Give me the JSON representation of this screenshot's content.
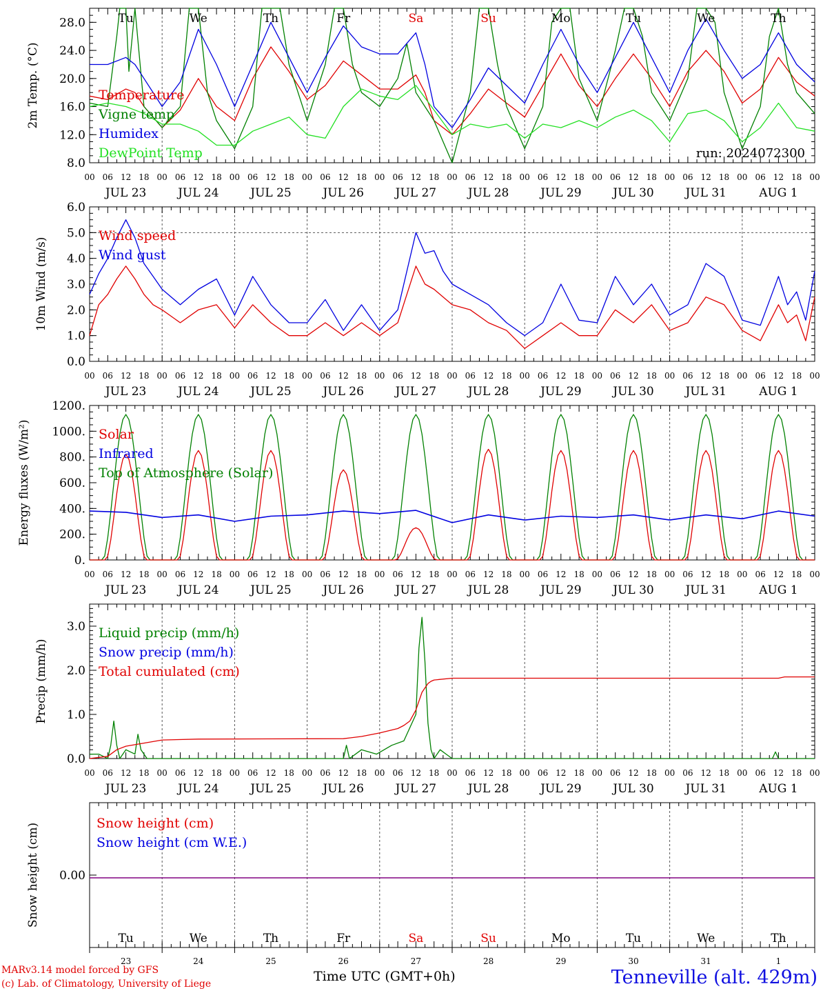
{
  "footer": {
    "credit_model": "MARv3.14 model forced by GFS",
    "credit_lab": "(c) Lab. of Climatology, University of Liege",
    "time_label": "Time UTC (GMT+0h)",
    "station": "Tenneville (alt. 429m)",
    "run": "run: 2024072300"
  },
  "chart_data": {
    "type": "line",
    "x_unit": "hours since 2024-07-23 00 UTC",
    "x_range": [
      0,
      240
    ],
    "hour_ticks": [
      "00",
      "06",
      "12",
      "18"
    ],
    "date_labels": [
      "JUL 23",
      "JUL 24",
      "JUL 25",
      "JUL 26",
      "JUL 27",
      "JUL 28",
      "JUL 29",
      "JUL 30",
      "JUL 31",
      "AUG  1"
    ],
    "day_names": [
      "Tu",
      "We",
      "Th",
      "Fr",
      "Sa",
      "Su",
      "Mo",
      "Tu",
      "We",
      "Th"
    ],
    "day_numbers": [
      "23",
      "24",
      "25",
      "26",
      "27",
      "28",
      "29",
      "30",
      "31",
      "1"
    ],
    "weekend_indices": [
      4,
      5
    ],
    "colors": {
      "red": "#e00000",
      "green": "#008000",
      "blue": "#0000e0",
      "lightgreen": "#22e022",
      "purple": "#800080",
      "grid": "#555555"
    },
    "panels": [
      {
        "id": "temp",
        "ylabel": "2m Temp. (°C)",
        "ylim": [
          8,
          30
        ],
        "yticks": [
          "8.0",
          "12.0",
          "16.0",
          "20.0",
          "24.0",
          "28.0"
        ],
        "series": [
          {
            "name": "Temperature",
            "color": "red",
            "x": [
              0,
              6,
              12,
              15,
              18,
              24,
              30,
              36,
              42,
              48,
              54,
              60,
              66,
              72,
              78,
              84,
              90,
              96,
              102,
              108,
              111,
              114,
              120,
              126,
              132,
              138,
              144,
              150,
              156,
              162,
              168,
              174,
              180,
              186,
              192,
              198,
              204,
              210,
              216,
              222,
              228,
              234,
              240
            ],
            "y": [
              17.5,
              17,
              18.5,
              18,
              16,
              13,
              15.5,
              20,
              16,
              14,
              20,
              24.5,
              21,
              17,
              19,
              22.5,
              20.5,
              18.5,
              18.5,
              20.5,
              18,
              14,
              12,
              15,
              18.5,
              16.5,
              14.5,
              19,
              23.5,
              19,
              16,
              20,
              23.5,
              20,
              16,
              21,
              24,
              21,
              16.5,
              18.5,
              23,
              19.5,
              17.5
            ]
          },
          {
            "name": "Vigne temp",
            "color": "green",
            "x": [
              0,
              6,
              9,
              10,
              12,
              13,
              15,
              18,
              24,
              30,
              33,
              36,
              39,
              42,
              48,
              54,
              57,
              60,
              63,
              66,
              72,
              78,
              81,
              84,
              87,
              90,
              96,
              102,
              105,
              108,
              111,
              114,
              120,
              126,
              129,
              132,
              135,
              138,
              144,
              150,
              153,
              156,
              159,
              162,
              168,
              174,
              177,
              180,
              183,
              186,
              192,
              198,
              201,
              204,
              207,
              210,
              216,
              222,
              225,
              228,
              231,
              234,
              240
            ],
            "y": [
              16.5,
              16,
              26,
              30,
              30,
              21,
              30,
              16,
              13,
              16,
              30,
              30,
              18,
              14,
              10,
              16,
              30,
              30,
              30,
              22,
              14,
              22,
              30,
              30,
              22,
              18,
              16,
              20,
              25,
              18,
              16,
              14,
              8,
              18,
              30,
              30,
              22,
              16,
              10,
              16,
              28,
              30,
              30,
              20,
              14,
              24,
              30,
              30,
              26,
              18,
              14,
              20,
              30,
              30,
              28,
              18,
              10,
              16,
              26,
              30,
              22,
              18,
              15
            ]
          },
          {
            "name": "Humidex",
            "color": "blue",
            "x": [
              0,
              6,
              12,
              15,
              18,
              24,
              30,
              36,
              42,
              48,
              54,
              60,
              66,
              72,
              78,
              84,
              90,
              96,
              102,
              108,
              111,
              114,
              120,
              126,
              132,
              138,
              144,
              150,
              156,
              162,
              168,
              174,
              180,
              186,
              192,
              198,
              204,
              210,
              216,
              222,
              228,
              234,
              240
            ],
            "y": [
              22,
              22,
              23,
              22,
              20,
              16,
              19.5,
              27,
              22,
              16,
              22,
              28,
              23,
              18,
              23,
              27.5,
              24.5,
              23.5,
              23.5,
              26.5,
              22,
              16,
              13,
              17,
              21.5,
              19,
              16.5,
              22,
              27,
              22,
              18,
              23,
              28,
              23,
              18,
              24,
              28.5,
              24,
              20,
              22,
              26.5,
              22,
              19.5
            ]
          },
          {
            "name": "DewPoint Temp",
            "color": "lightgreen",
            "x": [
              0,
              6,
              12,
              18,
              24,
              30,
              36,
              42,
              48,
              54,
              60,
              66,
              72,
              78,
              84,
              90,
              96,
              102,
              108,
              114,
              120,
              126,
              132,
              138,
              144,
              150,
              156,
              162,
              168,
              174,
              180,
              186,
              192,
              198,
              204,
              210,
              216,
              222,
              228,
              234,
              240
            ],
            "y": [
              16,
              16.5,
              16,
              15,
              13.5,
              13.5,
              12.5,
              10.5,
              10.5,
              12.5,
              13.5,
              14.5,
              12,
              11.5,
              16,
              18.5,
              17.5,
              17,
              19,
              15.5,
              12,
              13.5,
              13,
              13.5,
              11.5,
              13.5,
              13,
              14,
              13,
              14.5,
              15.5,
              14,
              11,
              15,
              15.5,
              14,
              11,
              13,
              16.5,
              13,
              12.5
            ]
          }
        ]
      },
      {
        "id": "wind",
        "ylabel": "10m Wind (m/s)",
        "ylim": [
          0,
          6
        ],
        "yticks": [
          "0.0",
          "1.0",
          "2.0",
          "3.0",
          "4.0",
          "5.0",
          "6.0"
        ],
        "dashed_y": 5,
        "series": [
          {
            "name": "Wind speed",
            "color": "red",
            "x": [
              0,
              3,
              6,
              9,
              12,
              15,
              18,
              21,
              24,
              30,
              36,
              42,
              48,
              54,
              60,
              66,
              72,
              78,
              84,
              90,
              96,
              102,
              108,
              111,
              114,
              117,
              120,
              126,
              132,
              138,
              144,
              150,
              156,
              162,
              168,
              174,
              180,
              186,
              192,
              198,
              204,
              210,
              216,
              222,
              228,
              231,
              234,
              237,
              240
            ],
            "y": [
              1,
              2.2,
              2.6,
              3.2,
              3.7,
              3.2,
              2.6,
              2.2,
              2,
              1.5,
              2,
              2.2,
              1.3,
              2.2,
              1.5,
              1,
              1,
              1.5,
              1,
              1.5,
              1,
              1.5,
              3.7,
              3,
              2.8,
              2.5,
              2.2,
              2,
              1.5,
              1.2,
              0.5,
              1,
              1.5,
              1,
              1,
              2,
              1.5,
              2.2,
              1.2,
              1.5,
              2.5,
              2.2,
              1.2,
              0.8,
              2.2,
              1.5,
              1.8,
              0.8,
              2.5
            ]
          },
          {
            "name": "Wind gust",
            "color": "blue",
            "x": [
              0,
              3,
              6,
              9,
              12,
              15,
              18,
              21,
              24,
              30,
              36,
              42,
              48,
              54,
              60,
              66,
              72,
              78,
              84,
              90,
              96,
              102,
              108,
              111,
              114,
              117,
              120,
              126,
              132,
              138,
              144,
              150,
              156,
              162,
              168,
              174,
              180,
              186,
              192,
              198,
              204,
              210,
              216,
              222,
              228,
              231,
              234,
              237,
              240
            ],
            "y": [
              2.6,
              3.4,
              4,
              4.8,
              5.5,
              4.8,
              3.8,
              3.3,
              2.8,
              2.2,
              2.8,
              3.2,
              1.8,
              3.3,
              2.2,
              1.5,
              1.5,
              2.4,
              1.2,
              2.2,
              1.2,
              2,
              5,
              4.2,
              4.3,
              3.5,
              3,
              2.6,
              2.2,
              1.5,
              1,
              1.5,
              3,
              1.6,
              1.5,
              3.3,
              2.2,
              3,
              1.8,
              2.2,
              3.8,
              3.3,
              1.6,
              1.4,
              3.3,
              2.2,
              2.7,
              1.6,
              3.5
            ]
          }
        ]
      },
      {
        "id": "energy",
        "ylabel": "Energy fluxes (W/m²)",
        "ylim": [
          0,
          1200
        ],
        "yticks": [
          "0.",
          "200.",
          "400.",
          "600.",
          "800.",
          "1000.",
          "1200."
        ],
        "toa_peak": 1130,
        "solar_peaks": [
          820,
          850,
          850,
          700,
          250,
          860,
          850,
          850,
          850,
          850
        ],
        "series": [
          {
            "name": "Solar",
            "color": "red"
          },
          {
            "name": "Infrared",
            "color": "blue",
            "x": [
              0,
              12,
              24,
              36,
              48,
              60,
              72,
              84,
              96,
              108,
              120,
              132,
              144,
              156,
              168,
              180,
              192,
              204,
              216,
              228,
              240
            ],
            "y": [
              380,
              370,
              330,
              350,
              300,
              340,
              350,
              380,
              360,
              385,
              290,
              350,
              310,
              340,
              330,
              350,
              310,
              350,
              320,
              380,
              340
            ]
          },
          {
            "name": "Top of Atmosphere (Solar)",
            "color": "green"
          }
        ]
      },
      {
        "id": "precip",
        "ylabel": "Precip (mm/h)",
        "ylim": [
          0,
          3.5
        ],
        "yticks": [
          "0.0",
          "1.0",
          "2.0",
          "3.0"
        ],
        "series": [
          {
            "name": "Liquid precip (mm/h)",
            "color": "green",
            "x": [
              0,
              3,
              6,
              7,
              8,
              9,
              10,
              11,
              12,
              15,
              16,
              17,
              18,
              19,
              24,
              84,
              85,
              86,
              90,
              95,
              100,
              104,
              108,
              109,
              110,
              111,
              112,
              113,
              114,
              116,
              118,
              120,
              121,
              226,
              227,
              228,
              240
            ],
            "y": [
              0.1,
              0.1,
              0,
              0.3,
              0.85,
              0.3,
              0,
              0.1,
              0.2,
              0.1,
              0.55,
              0.2,
              0.1,
              0,
              0,
              0,
              0.3,
              0,
              0.2,
              0.1,
              0.3,
              0.4,
              1,
              2.5,
              3.2,
              2.2,
              0.8,
              0.2,
              0,
              0.2,
              0.1,
              0,
              0,
              0,
              0.15,
              0,
              0
            ]
          },
          {
            "name": "Snow precip (mm/h)",
            "color": "blue",
            "x": [],
            "y": []
          },
          {
            "name": "Total cumulated (cm)",
            "color": "red",
            "x": [
              0,
              6,
              9,
              12,
              18,
              24,
              36,
              84,
              90,
              96,
              102,
              104,
              106,
              108,
              109,
              110,
              111,
              112,
              113,
              114,
              120,
              228,
              230,
              240
            ],
            "y": [
              0,
              0.05,
              0.2,
              0.28,
              0.35,
              0.42,
              0.44,
              0.45,
              0.5,
              0.58,
              0.68,
              0.75,
              0.85,
              1.1,
              1.3,
              1.5,
              1.6,
              1.7,
              1.75,
              1.78,
              1.82,
              1.82,
              1.85,
              1.85
            ]
          }
        ]
      },
      {
        "id": "snow",
        "ylabel": "Snow height (cm)",
        "yticks": [
          "0.00"
        ],
        "series": [
          {
            "name": "Snow height (cm)",
            "color": "red",
            "x": [
              0,
              240
            ],
            "y": [
              0,
              0
            ]
          },
          {
            "name": "Snow height (cm W.E.)",
            "color": "blue",
            "x": [
              0,
              240
            ],
            "y": [
              0,
              0
            ]
          }
        ]
      }
    ]
  }
}
